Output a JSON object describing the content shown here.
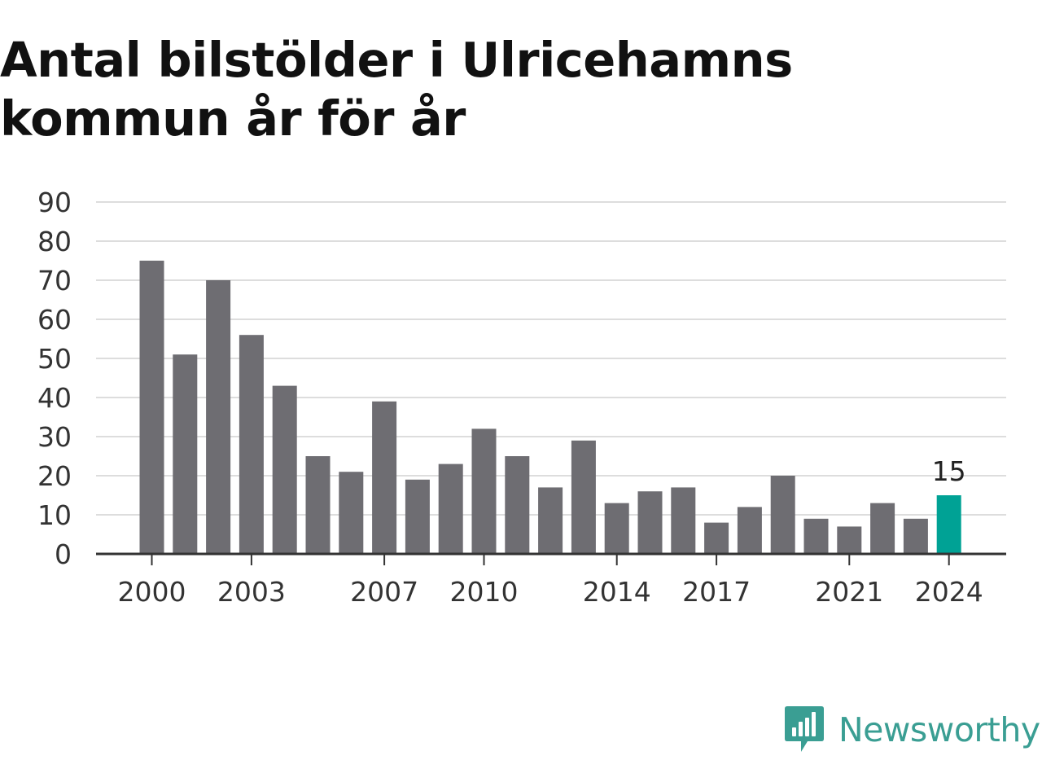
{
  "title": "Antal bilstölder i Ulricehamns kommun år för år",
  "logo": {
    "text": "Newsworthy",
    "icon": "newsworthy-logo-icon",
    "color": "#3a9e93"
  },
  "colors": {
    "bar": "#6e6d72",
    "highlight": "#00a295",
    "grid": "#dddddd",
    "axis": "#333333"
  },
  "chart_data": {
    "type": "bar",
    "title": "Antal bilstölder i Ulricehamns kommun år för år",
    "xlabel": "",
    "ylabel": "",
    "categories": [
      "2000",
      "2001",
      "2002",
      "2003",
      "2004",
      "2005",
      "2006",
      "2007",
      "2008",
      "2009",
      "2010",
      "2011",
      "2012",
      "2013",
      "2014",
      "2015",
      "2016",
      "2017",
      "2018",
      "2019",
      "2020",
      "2021",
      "2022",
      "2023",
      "2024"
    ],
    "values": [
      75,
      51,
      70,
      56,
      43,
      25,
      21,
      39,
      19,
      23,
      32,
      25,
      17,
      29,
      13,
      16,
      17,
      8,
      12,
      20,
      9,
      7,
      13,
      9,
      15
    ],
    "highlight_index": 24,
    "data_labels": [
      {
        "index": 24,
        "text": "15"
      }
    ],
    "x_tick_labels": [
      "2000",
      "2003",
      "2007",
      "2010",
      "2014",
      "2017",
      "2021",
      "2024"
    ],
    "y_ticks": [
      0,
      10,
      20,
      30,
      40,
      50,
      60,
      70,
      80,
      90
    ],
    "ylim": [
      0,
      90
    ],
    "grid": "horizontal",
    "legend": "none"
  }
}
